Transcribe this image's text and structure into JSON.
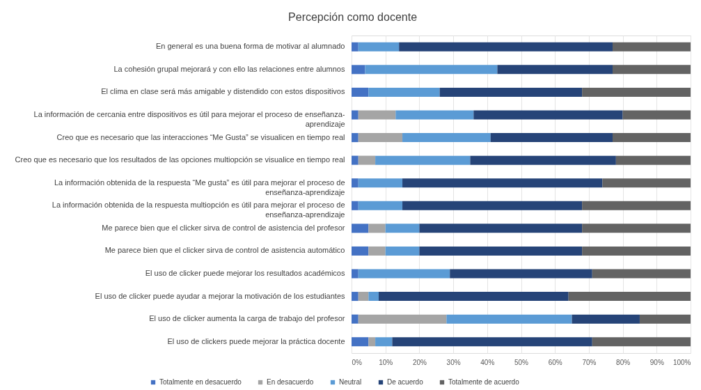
{
  "chart_data": {
    "type": "bar",
    "title": "Percepción como docente",
    "orientation": "horizontal",
    "stacked": true,
    "categories": [
      "En general es una buena forma de motivar al alumnado",
      "La cohesión grupal mejorará y con ello las relaciones entre alumnos",
      "El clima en clase será más amigable y distendido con estos dispositivos",
      "La información de cercania entre dispositivos es útil para mejorar el proceso de enseñanza-aprendizaje",
      "Creo que es necesario que las interacciones “Me Gusta” se visualicen en tiempo real",
      "Creo que es necesario que los resultados de las opciones multiopción se visualice en tiempo real",
      "La información obtenida de la respuesta “Me gusta” es útil para mejorar el proceso de enseñanza-aprendizaje",
      "La información obtenida de la respuesta multiopción es útil para mejorar el proceso de enseñanza-aprendizaje",
      "Me parece bien que el clicker sirva de control de asistencia del profesor",
      "Me parece bien que el clicker sirva de control de asistencia automático",
      "El uso de clicker puede mejorar los resultados académicos",
      "El uso de clicker puede ayudar a mejorar la motivación de los estudiantes",
      "El uso de clicker aumenta la carga de trabajo del profesor",
      "El uso de clickers puede mejorar la práctica docente"
    ],
    "series": [
      {
        "name": "Totalmente en desacuerdo",
        "color": "#4472c4",
        "values": [
          2,
          4,
          5,
          2,
          2,
          2,
          2,
          2,
          5,
          5,
          2,
          2,
          2,
          5
        ]
      },
      {
        "name": "En desacuerdo",
        "color": "#a5a5a5",
        "values": [
          0,
          0,
          0,
          11,
          13,
          5,
          0,
          0,
          5,
          5,
          0,
          3,
          26,
          2
        ]
      },
      {
        "name": "Neutral",
        "color": "#5b9bd5",
        "values": [
          12,
          39,
          21,
          23,
          26,
          28,
          13,
          13,
          10,
          10,
          27,
          3,
          37,
          5
        ]
      },
      {
        "name": "De acuerdo",
        "color": "#264478",
        "values": [
          63,
          34,
          42,
          44,
          36,
          43,
          59,
          53,
          48,
          48,
          42,
          56,
          20,
          59
        ]
      },
      {
        "name": "Totalmente de acuerdo",
        "color": "#636363",
        "values": [
          23,
          23,
          32,
          20,
          23,
          22,
          26,
          32,
          32,
          32,
          29,
          36,
          15,
          29
        ]
      }
    ],
    "xlim": [
      0,
      100
    ],
    "xticks": [
      {
        "value": 0,
        "label": "0%"
      },
      {
        "value": 10,
        "label": "10%"
      },
      {
        "value": 20,
        "label": "20%"
      },
      {
        "value": 30,
        "label": "30%"
      },
      {
        "value": 40,
        "label": "40%"
      },
      {
        "value": 50,
        "label": "50%"
      },
      {
        "value": 60,
        "label": "60%"
      },
      {
        "value": 70,
        "label": "70%"
      },
      {
        "value": 80,
        "label": "80%"
      },
      {
        "value": 90,
        "label": "90%"
      },
      {
        "value": 100,
        "label": "100%"
      }
    ],
    "grid": "x",
    "legend": "bottom"
  }
}
